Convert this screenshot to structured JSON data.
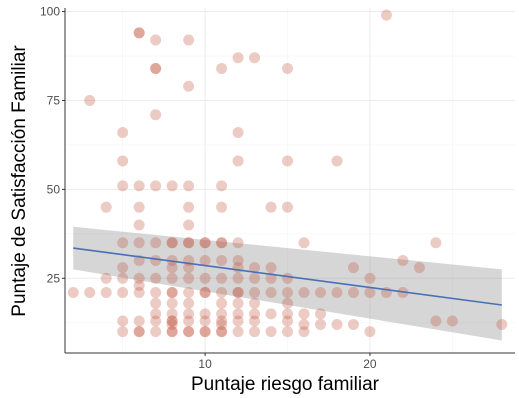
{
  "chart_data": {
    "type": "scatter",
    "xlabel": "Puntaje riesgo familiar",
    "ylabel": "Puntaje de Satisfacción Familiar",
    "xlim": [
      1.5,
      28.8
    ],
    "ylim": [
      4,
      101
    ],
    "x_ticks": [
      10,
      20
    ],
    "y_ticks": [
      25,
      50,
      75,
      100
    ],
    "grid": true,
    "point_color": "#c0533f",
    "point_opacity": 0.3,
    "smooth": {
      "method": "linear",
      "color": "#4a6fb5",
      "band_color": "#999999",
      "x": [
        2,
        28
      ],
      "y": [
        33.5,
        17.5
      ],
      "ci_lower": [
        27.5,
        7.5
      ],
      "ci_upper": [
        39.5,
        27.5
      ]
    },
    "points": [
      [
        2,
        21
      ],
      [
        3,
        21
      ],
      [
        3,
        75
      ],
      [
        4,
        25
      ],
      [
        4,
        21
      ],
      [
        4,
        45
      ],
      [
        5,
        66
      ],
      [
        5,
        58
      ],
      [
        5,
        51
      ],
      [
        5,
        35
      ],
      [
        5,
        28
      ],
      [
        5,
        25
      ],
      [
        5,
        21
      ],
      [
        5,
        13
      ],
      [
        5,
        10
      ],
      [
        6,
        94
      ],
      [
        6,
        94
      ],
      [
        6,
        51
      ],
      [
        6,
        45
      ],
      [
        6,
        40
      ],
      [
        6,
        35
      ],
      [
        6,
        30
      ],
      [
        6,
        25
      ],
      [
        6,
        23
      ],
      [
        6,
        21
      ],
      [
        6,
        13
      ],
      [
        6,
        10
      ],
      [
        6,
        10
      ],
      [
        7,
        92
      ],
      [
        7,
        84
      ],
      [
        7,
        84
      ],
      [
        7,
        71
      ],
      [
        7,
        51
      ],
      [
        7,
        35
      ],
      [
        7,
        30
      ],
      [
        7,
        25
      ],
      [
        7,
        21
      ],
      [
        7,
        18
      ],
      [
        7,
        15
      ],
      [
        7,
        13
      ],
      [
        7,
        10
      ],
      [
        8,
        51
      ],
      [
        8,
        35
      ],
      [
        8,
        35
      ],
      [
        8,
        30
      ],
      [
        8,
        28
      ],
      [
        8,
        25
      ],
      [
        8,
        21
      ],
      [
        8,
        21
      ],
      [
        8,
        18
      ],
      [
        8,
        15
      ],
      [
        8,
        13
      ],
      [
        8,
        13
      ],
      [
        8,
        12
      ],
      [
        8,
        10
      ],
      [
        8,
        10
      ],
      [
        9,
        92
      ],
      [
        9,
        79
      ],
      [
        9,
        51
      ],
      [
        9,
        45
      ],
      [
        9,
        40
      ],
      [
        9,
        35
      ],
      [
        9,
        35
      ],
      [
        9,
        30
      ],
      [
        9,
        28
      ],
      [
        9,
        25
      ],
      [
        9,
        21
      ],
      [
        9,
        18
      ],
      [
        9,
        15
      ],
      [
        9,
        13
      ],
      [
        9,
        10
      ],
      [
        9,
        10
      ],
      [
        10,
        35
      ],
      [
        10,
        35
      ],
      [
        10,
        30
      ],
      [
        10,
        25
      ],
      [
        10,
        21
      ],
      [
        10,
        21
      ],
      [
        10,
        15
      ],
      [
        10,
        13
      ],
      [
        10,
        10
      ],
      [
        10,
        10
      ],
      [
        11,
        84
      ],
      [
        11,
        51
      ],
      [
        11,
        45
      ],
      [
        11,
        35
      ],
      [
        11,
        35
      ],
      [
        11,
        30
      ],
      [
        11,
        25
      ],
      [
        11,
        21
      ],
      [
        11,
        18
      ],
      [
        11,
        15
      ],
      [
        11,
        13
      ],
      [
        11,
        12
      ],
      [
        11,
        10
      ],
      [
        11,
        10
      ],
      [
        12,
        87
      ],
      [
        12,
        66
      ],
      [
        12,
        58
      ],
      [
        12,
        35
      ],
      [
        12,
        30
      ],
      [
        12,
        28
      ],
      [
        12,
        25
      ],
      [
        12,
        21
      ],
      [
        12,
        21
      ],
      [
        12,
        18
      ],
      [
        12,
        15
      ],
      [
        12,
        13
      ],
      [
        12,
        10
      ],
      [
        13,
        87
      ],
      [
        13,
        28
      ],
      [
        13,
        25
      ],
      [
        13,
        21
      ],
      [
        13,
        18
      ],
      [
        13,
        15
      ],
      [
        13,
        13
      ],
      [
        13,
        10
      ],
      [
        14,
        45
      ],
      [
        14,
        28
      ],
      [
        14,
        25
      ],
      [
        14,
        21
      ],
      [
        14,
        15
      ],
      [
        14,
        10
      ],
      [
        15,
        84
      ],
      [
        15,
        58
      ],
      [
        15,
        45
      ],
      [
        15,
        25
      ],
      [
        15,
        21
      ],
      [
        15,
        18
      ],
      [
        15,
        15
      ],
      [
        15,
        13
      ],
      [
        15,
        10
      ],
      [
        16,
        35
      ],
      [
        16,
        21
      ],
      [
        16,
        15
      ],
      [
        16,
        12
      ],
      [
        16,
        10
      ],
      [
        17,
        21
      ],
      [
        17,
        15
      ],
      [
        17,
        12
      ],
      [
        18,
        58
      ],
      [
        18,
        21
      ],
      [
        18,
        12
      ],
      [
        19,
        28
      ],
      [
        19,
        21
      ],
      [
        19,
        12
      ],
      [
        20,
        25
      ],
      [
        20,
        21
      ],
      [
        20,
        10
      ],
      [
        21,
        99
      ],
      [
        21,
        21
      ],
      [
        22,
        30
      ],
      [
        22,
        21
      ],
      [
        23,
        28
      ],
      [
        24,
        35
      ],
      [
        24,
        13
      ],
      [
        25,
        13
      ],
      [
        28,
        12
      ]
    ]
  }
}
